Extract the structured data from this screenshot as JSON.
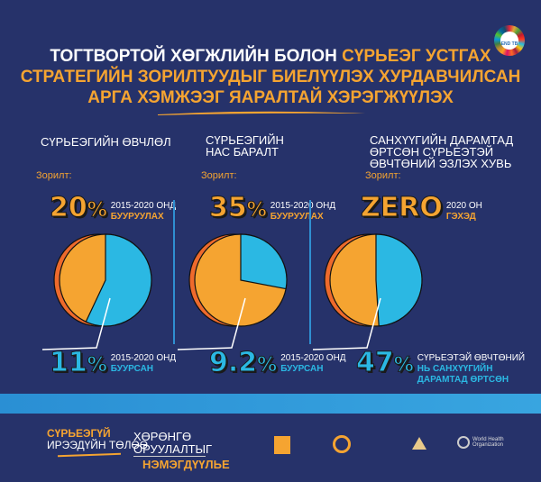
{
  "header": {
    "title_line1_white": "ТОГТВОРТОЙ ХӨГЖЛИЙН БОЛОН ",
    "title_line1_orange": "СҮРЬЕЭГ УСТГАХ",
    "title_line2": "СТРАТЕГИЙН ЗОРИЛТУУДЫГ БИЕЛҮҮЛЭХ ХУРДАВЧИЛСАН",
    "title_line3": "АРГА ХЭМЖЭЭГ ЯАРАЛТАЙ ХЭРЭГЖҮҮЛЭХ",
    "logo_text": "END TB"
  },
  "columns": [
    {
      "heading": [
        "СҮРЬЕЭГИЙН  ӨВЧЛӨЛ"
      ],
      "goal_label": "Зорилт:",
      "target_value": "20",
      "target_unit": "%",
      "target_line1": "2015-2020 ОНД",
      "target_line2": "БУУРУУЛАХ",
      "result_value": "11",
      "result_unit": "%",
      "result_line1": "2015-2020 ОНД",
      "result_line2": "БУУРСАН",
      "result_line3": "",
      "pie_blue_fraction": 0.57
    },
    {
      "heading": [
        "СҮРЬЕЭГИЙН",
        "НАС БАРАЛТ"
      ],
      "goal_label": "Зорилт:",
      "target_value": "35",
      "target_unit": "%",
      "target_line1": "2015-2020 ОНД",
      "target_line2": "БУУРУУЛАХ",
      "result_value": "9.2",
      "result_unit": "%",
      "result_line1": "2015-2020 ОНД",
      "result_line2": "БУУРСАН",
      "result_line3": "",
      "pie_blue_fraction": 0.28
    },
    {
      "heading": [
        "САНХҮҮГИЙН ДАРАМТАД",
        "ӨРТСӨН СҮРЬЕЭТЭЙ",
        "ӨВЧТӨНИЙ ЭЗЛЭХ ХУВЬ"
      ],
      "goal_label": "Зорилт:",
      "target_value": "ZERO",
      "target_unit": "",
      "target_line1": "2020 ОН",
      "target_line2": "ГЭХЭД",
      "result_value": "47",
      "result_unit": "%",
      "result_line1": "СҮРЬЕЭТЭЙ ӨВЧТӨНИЙ",
      "result_line2": "НЬ САНХҮҮГИЙН",
      "result_line3": "ДАРАМТАД ӨРТСӨН",
      "pie_blue_fraction": 0.49
    }
  ],
  "footer": {
    "slogan1_line1": "СҮРЬЕЭГҮЙ",
    "slogan1_line2": "ИРЭЭДҮЙН ТӨЛӨӨ",
    "slogan2_line1": "ХӨРӨНГӨ",
    "slogan2_line2": "ОРУУЛАЛТЫГ",
    "slogan2_line3": "НЭМЭГДҮҮЛЬЕ",
    "who_logo": "World Health Organization"
  },
  "colors": {
    "background": "#26326a",
    "orange": "#f5a431",
    "blue": "#2bb8e3",
    "shadow": "#ee6a2c"
  }
}
